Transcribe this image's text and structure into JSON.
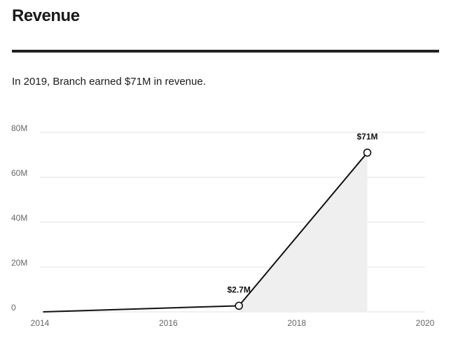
{
  "page": {
    "title": "Revenue",
    "summary": "In 2019, Branch earned $71M in revenue."
  },
  "chart_data": {
    "type": "area",
    "x": [
      2014.05,
      2017.1,
      2019.1
    ],
    "y": [
      0,
      2.7,
      71
    ],
    "point_labels": [
      "",
      "$2.7M",
      "$71M"
    ],
    "xlim": [
      2014,
      2020
    ],
    "ylim": [
      0,
      80
    ],
    "x_ticks": [
      2014,
      2016,
      2018,
      2020
    ],
    "x_tick_labels": [
      "2014",
      "2016",
      "2018",
      "2020"
    ],
    "y_ticks": [
      0,
      20,
      40,
      60,
      80
    ],
    "y_tick_labels": [
      "0",
      "20M",
      "40M",
      "60M",
      "80M"
    ],
    "y_unit": "M",
    "grid": "horizontal",
    "shaded_area_from_x": 2017.1,
    "colors": {
      "line": "#111111",
      "area": "#efefef",
      "grid": "#e2e2e2",
      "marker_fill": "#ffffff"
    }
  }
}
